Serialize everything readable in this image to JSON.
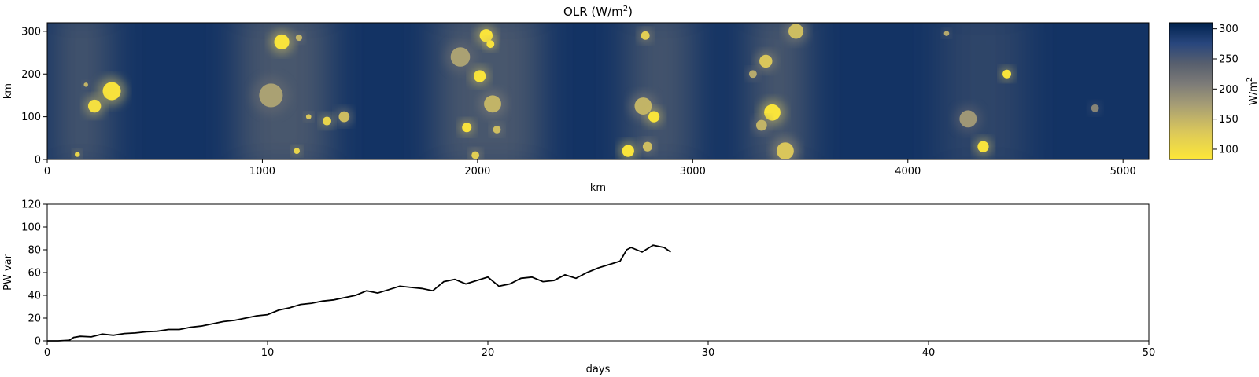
{
  "chart_data": [
    {
      "type": "heatmap",
      "title": "OLR (W/m",
      "title_superscript": "2",
      "title_suffix": ")",
      "xlabel": "km",
      "ylabel": "km",
      "xlim": [
        0,
        5120
      ],
      "ylim": [
        0,
        320
      ],
      "xticks": [
        0,
        1000,
        2000,
        3000,
        4000,
        5000
      ],
      "yticks": [
        0,
        100,
        200,
        300
      ],
      "colormap": "cividis_r",
      "colorbar": {
        "label": "W/m",
        "label_superscript": "2",
        "range": [
          83,
          310
        ],
        "ticks": [
          100,
          150,
          200,
          250,
          300
        ]
      },
      "bands": [
        {
          "center": 160,
          "width": 260,
          "intensity": 0.55
        },
        {
          "center": 1100,
          "width": 420,
          "intensity": 0.6
        },
        {
          "center": 2050,
          "width": 480,
          "intensity": 0.6
        },
        {
          "center": 2850,
          "width": 300,
          "intensity": 0.55
        },
        {
          "center": 3400,
          "width": 260,
          "intensity": 0.6
        },
        {
          "center": 4350,
          "width": 380,
          "intensity": 0.3
        }
      ],
      "cells": [
        {
          "x": 300,
          "y": 160,
          "r": 42,
          "value": 90
        },
        {
          "x": 220,
          "y": 125,
          "r": 30,
          "value": 95
        },
        {
          "x": 180,
          "y": 175,
          "r": 10,
          "value": 150
        },
        {
          "x": 140,
          "y": 12,
          "r": 12,
          "value": 110
        },
        {
          "x": 1090,
          "y": 275,
          "r": 35,
          "value": 88
        },
        {
          "x": 1040,
          "y": 150,
          "r": 55,
          "value": 170
        },
        {
          "x": 1170,
          "y": 285,
          "r": 15,
          "value": 150
        },
        {
          "x": 1300,
          "y": 90,
          "r": 20,
          "value": 110
        },
        {
          "x": 1380,
          "y": 100,
          "r": 25,
          "value": 140
        },
        {
          "x": 1215,
          "y": 100,
          "r": 12,
          "value": 130
        },
        {
          "x": 1160,
          "y": 20,
          "r": 14,
          "value": 110
        },
        {
          "x": 2040,
          "y": 290,
          "r": 30,
          "value": 88
        },
        {
          "x": 2060,
          "y": 270,
          "r": 18,
          "value": 90
        },
        {
          "x": 2010,
          "y": 195,
          "r": 28,
          "value": 88
        },
        {
          "x": 1920,
          "y": 240,
          "r": 45,
          "value": 170
        },
        {
          "x": 2070,
          "y": 130,
          "r": 40,
          "value": 150
        },
        {
          "x": 1950,
          "y": 75,
          "r": 22,
          "value": 90
        },
        {
          "x": 2090,
          "y": 70,
          "r": 18,
          "value": 140
        },
        {
          "x": 1990,
          "y": 10,
          "r": 18,
          "value": 120
        },
        {
          "x": 2770,
          "y": 125,
          "r": 40,
          "value": 150
        },
        {
          "x": 2820,
          "y": 100,
          "r": 26,
          "value": 88
        },
        {
          "x": 2700,
          "y": 20,
          "r": 28,
          "value": 88
        },
        {
          "x": 2780,
          "y": 290,
          "r": 20,
          "value": 120
        },
        {
          "x": 2790,
          "y": 30,
          "r": 22,
          "value": 140
        },
        {
          "x": 3370,
          "y": 110,
          "r": 38,
          "value": 88
        },
        {
          "x": 3340,
          "y": 230,
          "r": 30,
          "value": 130
        },
        {
          "x": 3480,
          "y": 300,
          "r": 35,
          "value": 140
        },
        {
          "x": 3430,
          "y": 20,
          "r": 40,
          "value": 130
        },
        {
          "x": 3320,
          "y": 80,
          "r": 25,
          "value": 150
        },
        {
          "x": 3280,
          "y": 200,
          "r": 18,
          "value": 160
        },
        {
          "x": 4460,
          "y": 200,
          "r": 20,
          "value": 88
        },
        {
          "x": 4350,
          "y": 30,
          "r": 26,
          "value": 90
        },
        {
          "x": 4280,
          "y": 95,
          "r": 40,
          "value": 180
        },
        {
          "x": 4180,
          "y": 295,
          "r": 12,
          "value": 160
        },
        {
          "x": 4870,
          "y": 120,
          "r": 18,
          "value": 200
        }
      ]
    },
    {
      "type": "line",
      "title": "",
      "xlabel": "days",
      "ylabel": "PW var",
      "xlim": [
        0,
        50
      ],
      "ylim": [
        0,
        120
      ],
      "xticks": [
        0,
        10,
        20,
        30,
        40,
        50
      ],
      "yticks": [
        0,
        20,
        40,
        60,
        80,
        100,
        120
      ],
      "color": "#000000",
      "series": [
        {
          "x": [
            0,
            0.5,
            1.0,
            1.2,
            1.5,
            2.0,
            2.5,
            3.0,
            3.5,
            4.0,
            4.5,
            5.0,
            5.5,
            6.0,
            6.5,
            7.0,
            7.5,
            8.0,
            8.5,
            9.0,
            9.5,
            10.0,
            10.5,
            11.0,
            11.5,
            12.0,
            12.5,
            13.0,
            13.5,
            14.0,
            14.5,
            15.0,
            15.5,
            16.0,
            16.5,
            17.0,
            17.5,
            18.0,
            18.5,
            19.0,
            19.5,
            20.0,
            20.5,
            21.0,
            21.5,
            22.0,
            22.5,
            23.0,
            23.5,
            24.0,
            24.5,
            25.0,
            25.5,
            26.0,
            26.3,
            26.5,
            27.0,
            27.5,
            28.0,
            28.3
          ],
          "values": [
            0,
            0,
            0.5,
            3,
            4,
            3.5,
            6,
            5,
            6.5,
            7,
            8,
            8.5,
            10,
            10,
            12,
            13,
            15,
            17,
            18,
            20,
            22,
            23,
            27,
            29,
            32,
            33,
            35,
            36,
            38,
            40,
            44,
            42,
            45,
            48,
            47,
            46,
            44,
            52,
            54,
            50,
            53,
            56,
            48,
            50,
            55,
            56,
            52,
            53,
            58,
            55,
            60,
            64,
            67,
            70,
            80,
            82,
            78,
            84,
            82,
            78
          ]
        }
      ]
    }
  ]
}
